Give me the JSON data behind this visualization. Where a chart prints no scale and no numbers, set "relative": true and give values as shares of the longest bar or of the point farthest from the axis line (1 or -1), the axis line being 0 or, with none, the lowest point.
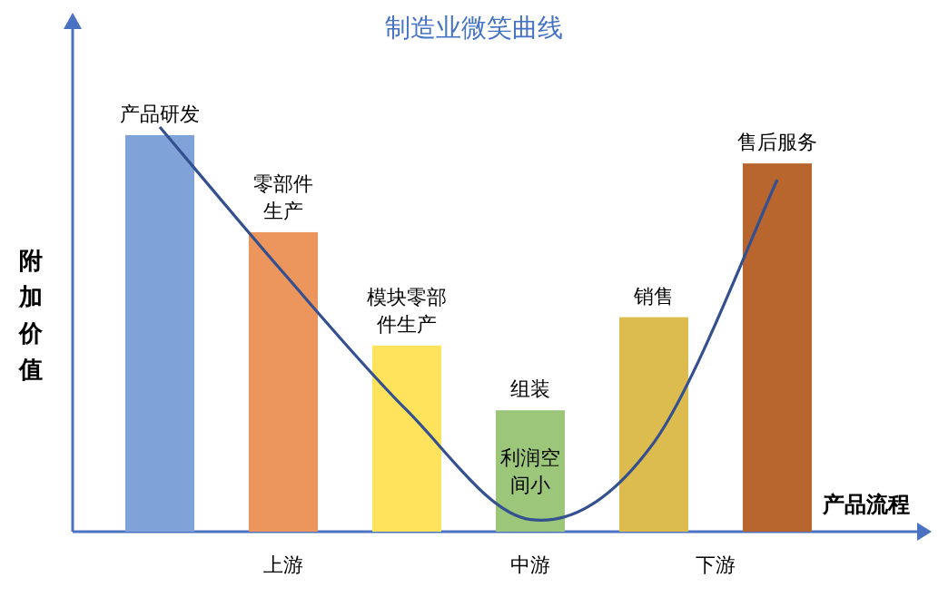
{
  "chart_data": {
    "type": "bar",
    "title": "制造业微笑曲线",
    "xlabel": "产品流程",
    "ylabel": "附加价值",
    "relative": true,
    "categories": [
      "产品研发",
      "零部件生产",
      "模块零部件生产",
      "组装",
      "销售",
      "售后服务"
    ],
    "series": [
      {
        "colors": [
          "#7fa3d9",
          "#ec955c",
          "#ffe35c",
          "#9cc77a",
          "#dcbc4e",
          "#b8662e"
        ],
        "values": [
          0.98,
          0.74,
          0.46,
          0.3,
          0.53,
          0.91
        ]
      },
      {
        "type": "line",
        "color": "#34508f",
        "values": [
          1,
          0.64,
          0.3,
          0.03,
          0.22,
          0.87
        ]
      }
    ],
    "annotations": [
      "上游",
      "中游",
      "下游",
      "利润空间小"
    ]
  }
}
